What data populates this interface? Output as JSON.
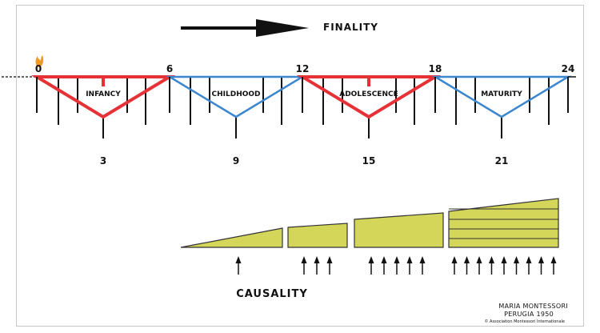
{
  "header": {
    "finality_label": "FINALITY"
  },
  "scale": {
    "ages": [
      "0",
      "6",
      "12",
      "18",
      "24"
    ]
  },
  "planes": [
    {
      "label": "INFANCY",
      "midpoint": "3",
      "color": "#e63236"
    },
    {
      "label": "CHILDHOOD",
      "midpoint": "9",
      "color": "#3a86cf"
    },
    {
      "label": "ADOLESCENCE",
      "midpoint": "15",
      "color": "#e63236"
    },
    {
      "label": "MATURITY",
      "midpoint": "21",
      "color": "#3a86cf"
    }
  ],
  "causality": {
    "label": "CAUSALITY",
    "fill_color": "#d4d65a",
    "arrow_counts": [
      1,
      3,
      5,
      9
    ]
  },
  "credit": {
    "line1": "MARIA MONTESSORI",
    "line2": "PERUGIA 1950",
    "line3": "© Association Montessori Internationale"
  }
}
